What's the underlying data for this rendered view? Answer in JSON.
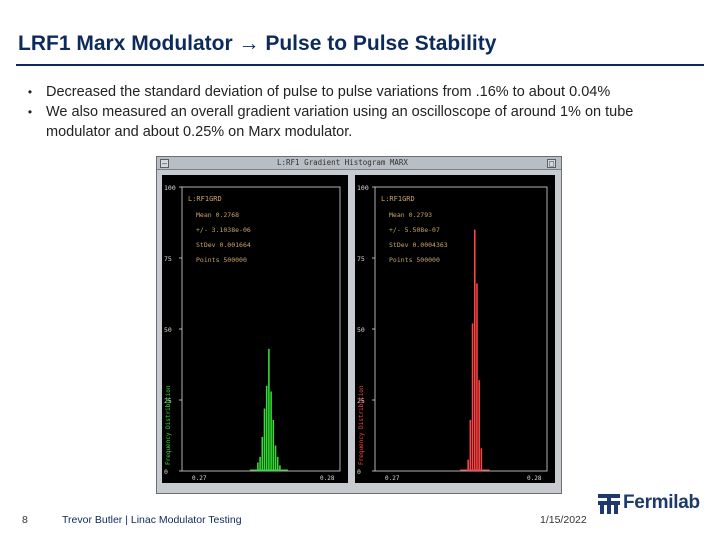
{
  "slide": {
    "title": "LRF1 Marx Modulator → Pulse to Pulse Stability",
    "bullets": [
      "Decreased the standard deviation of pulse to pulse variations from .16% to about 0.04%",
      "We also measured an overall gradient variation using an oscilloscope of around 1% on tube modulator and about 0.25% on Marx modulator."
    ],
    "bullet_marker": "•"
  },
  "scope_window": {
    "title": "L:RF1 Gradient  Histogram        MARX",
    "plots": [
      {
        "id": "left",
        "label": "L:RF1GRD",
        "stats": [
          "Mean  0.2768",
          "+/-  3.1038e-06",
          "StDev  0.001664",
          "Points  500000"
        ],
        "y_ticks": [
          "100",
          "75",
          "50",
          "25",
          "0"
        ],
        "x_ticks": [
          "0.27",
          "0.28"
        ],
        "y_axis_label": "Frequency Distribution",
        "color": "#33dd33",
        "bars": [
          0.03,
          0.05,
          0.12,
          0.22,
          0.3,
          0.43,
          0.28,
          0.18,
          0.09,
          0.05,
          0.02
        ]
      },
      {
        "id": "right",
        "label": "L:RF1GRD",
        "stats": [
          "Mean  0.2793",
          "+/-  5.508e-07",
          "StDev  0.0004363",
          "Points  500000"
        ],
        "y_ticks": [
          "100",
          "75",
          "50",
          "25",
          "0"
        ],
        "x_ticks": [
          "0.27",
          "0.28"
        ],
        "y_axis_label": "Frequency Distribution",
        "color": "#ff4444",
        "bars": [
          0.04,
          0.18,
          0.52,
          0.85,
          0.66,
          0.32,
          0.08
        ]
      }
    ]
  },
  "footer": {
    "page_number": "8",
    "text": "Trevor Butler | Linac Modulator Testing",
    "date": "1/15/2022",
    "logo_text": "Fermilab"
  },
  "colors": {
    "title": "#0c2a5c",
    "plot_background": "#000000",
    "stats_text": "#c8a36b",
    "axis": "#dcdcdc"
  }
}
